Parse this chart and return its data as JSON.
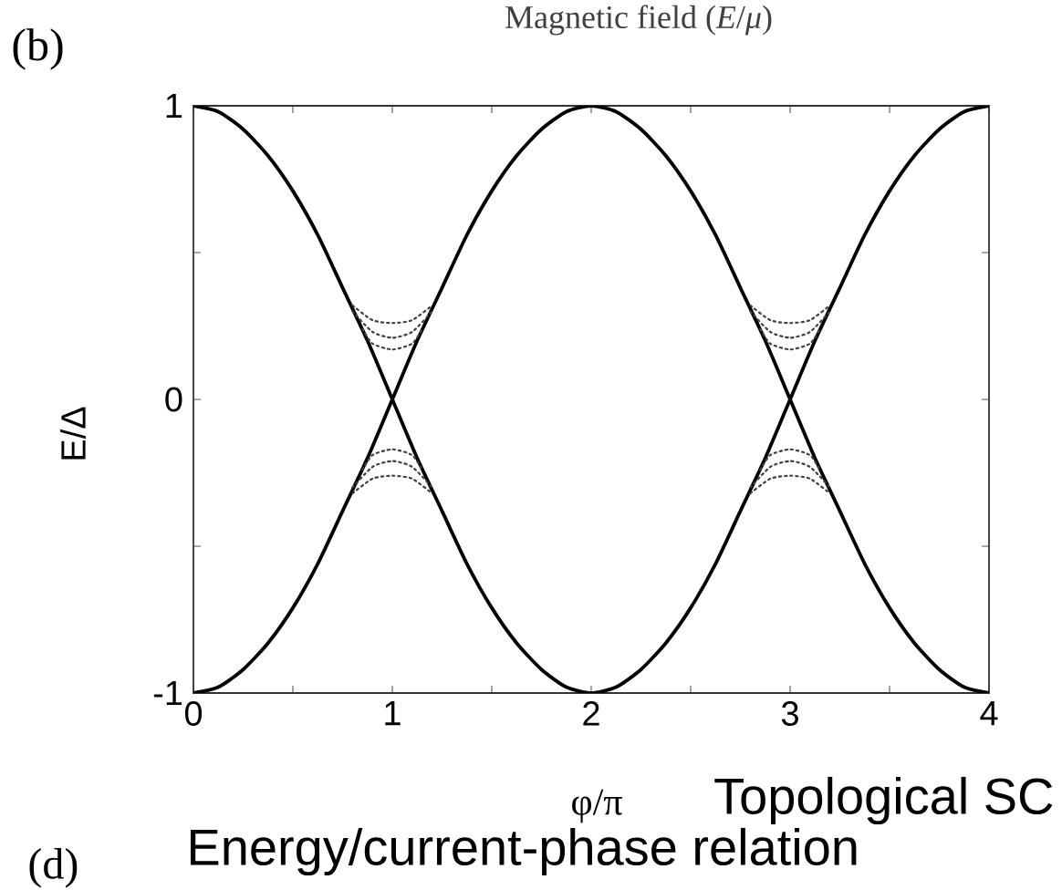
{
  "chart_data": {
    "type": "line",
    "title": "Magnetic field (*E*/*μ*)",
    "xlabel": "φ/π",
    "ylabel": "E/Δ",
    "annotations": [
      "(b)",
      "Topological SC",
      "Energy/current-phase relation",
      "(d)"
    ],
    "x": [
      0,
      0.125,
      0.25,
      0.375,
      0.5,
      0.625,
      0.75,
      0.875,
      1,
      1.125,
      1.25,
      1.375,
      1.5,
      1.625,
      1.75,
      1.875,
      2,
      2.125,
      2.25,
      2.375,
      2.5,
      2.625,
      2.75,
      2.875,
      3,
      3.125,
      3.25,
      3.375,
      3.5,
      3.625,
      3.75,
      3.875,
      4
    ],
    "line_style": "solid",
    "series": [
      {
        "color": "#000000",
        "values": [
          1,
          0.98,
          0.92,
          0.83,
          0.71,
          0.56,
          0.38,
          0.2,
          0,
          -0.2,
          -0.38,
          -0.56,
          -0.71,
          -0.83,
          -0.92,
          -0.98,
          -1,
          -0.98,
          -0.92,
          -0.83,
          -0.71,
          -0.56,
          -0.38,
          -0.2,
          0,
          0.2,
          0.38,
          0.56,
          0.71,
          0.83,
          0.92,
          0.98,
          1
        ]
      },
      {
        "color": "#000000",
        "values": [
          -1,
          -0.98,
          -0.92,
          -0.83,
          -0.71,
          -0.56,
          -0.38,
          -0.2,
          0,
          0.2,
          0.38,
          0.56,
          0.71,
          0.83,
          0.92,
          0.98,
          1,
          0.98,
          0.92,
          0.83,
          0.71,
          0.56,
          0.38,
          0.2,
          0,
          -0.2,
          -0.38,
          -0.56,
          -0.71,
          -0.83,
          -0.92,
          -0.98,
          -1
        ]
      },
      {
        "color": "#404040",
        "line_style": "dotted",
        "x": [
          0.8,
          0.9,
          1,
          1.1,
          1.2,
          2,
          2.8,
          2.9,
          3,
          3.1,
          3.2
        ],
        "values": [
          0.32,
          0.27,
          0.26,
          0.27,
          0.32,
          null,
          0.32,
          0.27,
          0.26,
          0.27,
          0.32
        ]
      },
      {
        "color": "#404040",
        "line_style": "dotted",
        "x": [
          0.8,
          0.9,
          1,
          1.1,
          1.2,
          2,
          2.8,
          2.9,
          3,
          3.1,
          3.2
        ],
        "values": [
          0.3,
          0.23,
          0.21,
          0.23,
          0.3,
          null,
          0.3,
          0.23,
          0.21,
          0.23,
          0.3
        ]
      },
      {
        "color": "#404040",
        "line_style": "dotted",
        "x": [
          0.85,
          0.9,
          1,
          1.1,
          1.15,
          2,
          2.85,
          2.9,
          3,
          3.1,
          3.15
        ],
        "values": [
          0.24,
          0.19,
          0.17,
          0.19,
          0.24,
          null,
          0.24,
          0.19,
          0.17,
          0.19,
          0.24
        ]
      },
      {
        "color": "#404040",
        "line_style": "dotted",
        "x": [
          0.8,
          0.9,
          1,
          1.1,
          1.2,
          2,
          2.8,
          2.9,
          3,
          3.1,
          3.2
        ],
        "values": [
          -0.32,
          -0.27,
          -0.26,
          -0.27,
          -0.32,
          null,
          -0.32,
          -0.27,
          -0.26,
          -0.27,
          -0.32
        ]
      },
      {
        "color": "#404040",
        "line_style": "dotted",
        "x": [
          0.8,
          0.9,
          1,
          1.1,
          1.2,
          2,
          2.8,
          2.9,
          3,
          3.1,
          3.2
        ],
        "values": [
          -0.3,
          -0.23,
          -0.21,
          -0.23,
          -0.3,
          null,
          -0.3,
          -0.23,
          -0.21,
          -0.23,
          -0.3
        ]
      },
      {
        "color": "#404040",
        "line_style": "dotted",
        "x": [
          0.85,
          0.9,
          1,
          1.1,
          1.15,
          2,
          2.85,
          2.9,
          3,
          3.1,
          3.15
        ],
        "values": [
          -0.24,
          -0.19,
          -0.17,
          -0.19,
          -0.24,
          null,
          -0.24,
          -0.19,
          -0.17,
          -0.19,
          -0.24
        ]
      }
    ],
    "xlim": [
      0,
      4
    ],
    "ylim": [
      -1,
      1
    ],
    "xticks": [
      0,
      {
        "value": 0.5,
        "label": null
      },
      1,
      {
        "value": 1.5,
        "label": null
      },
      2,
      {
        "value": 2.5,
        "label": null
      },
      3,
      {
        "value": 3.5,
        "label": null
      },
      4
    ],
    "yticks": [
      -1,
      {
        "value": -0.5,
        "label": null
      },
      0,
      {
        "value": 0.5,
        "label": null
      },
      1
    ]
  }
}
